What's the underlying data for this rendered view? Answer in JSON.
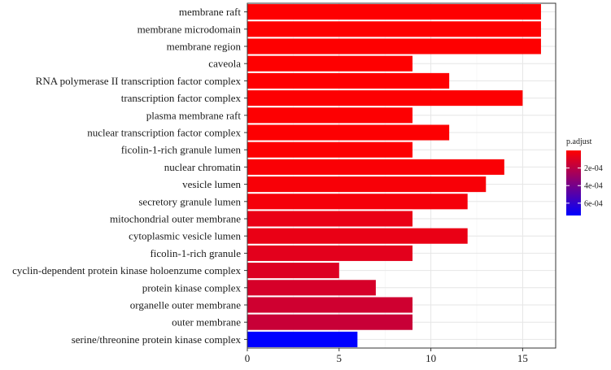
{
  "chart_data": {
    "type": "bar",
    "orientation": "horizontal",
    "title": "",
    "xlabel": "",
    "ylabel": "",
    "xlim": [
      0,
      16.8
    ],
    "x_ticks": [
      0,
      5,
      10,
      15
    ],
    "grid": true,
    "categories": [
      "membrane raft",
      "membrane microdomain",
      "membrane region",
      "caveola",
      "RNA polymerase II transcription factor complex",
      "transcription factor complex",
      "plasma membrane raft",
      "nuclear transcription factor complex",
      "ficolin-1-rich granule lumen",
      "nuclear chromatin",
      "vesicle lumen",
      "secretory granule lumen",
      "mitochondrial outer membrane",
      "cytoplasmic vesicle lumen",
      "ficolin-1-rich granule",
      "cyclin-dependent protein kinase holoenzume complex",
      "protein kinase complex",
      "organelle outer membrane",
      "outer membrane",
      "serine/threonine protein kinase complex"
    ],
    "values": [
      16,
      16,
      16,
      9,
      11,
      15,
      9,
      11,
      9,
      14,
      13,
      12,
      9,
      12,
      9,
      5,
      7,
      9,
      9,
      6
    ],
    "p_adjust": [
      2e-06,
      2e-06,
      2e-06,
      3e-06,
      4e-06,
      5e-06,
      5e-06,
      5e-06,
      6e-06,
      1.4e-05,
      2e-05,
      3e-05,
      6e-05,
      6e-05,
      8e-05,
      0.0001,
      0.00012,
      0.00014,
      0.00016,
      0.00074
    ],
    "legend": {
      "title": "p.adjust",
      "placement": "right",
      "range": [
        0,
        0.00074
      ],
      "ticks": [
        0.0002,
        0.0004,
        0.0006
      ],
      "tick_labels": [
        "2e-04",
        "4e-04",
        "6e-04"
      ],
      "color_low": "#ff0000",
      "color_high": "#0000ff"
    }
  }
}
